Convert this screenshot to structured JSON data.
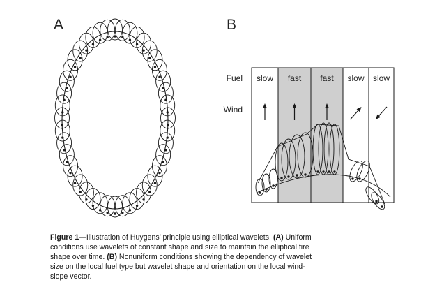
{
  "panels": {
    "a": {
      "letter": "A"
    },
    "b": {
      "letter": "B",
      "fuel_label": "Fuel",
      "wind_label": "Wind",
      "columns": [
        {
          "fuel": "slow",
          "wind": "north",
          "shaded": false
        },
        {
          "fuel": "fast",
          "wind": "north",
          "shaded": true
        },
        {
          "fuel": "fast",
          "wind": "north",
          "shaded": true
        },
        {
          "fuel": "slow",
          "wind": "north-east",
          "shaded": false
        },
        {
          "fuel": "slow",
          "wind": "south-west",
          "shaded": false
        }
      ]
    }
  },
  "caption": {
    "figure_label": "Figure 1—",
    "intro": "Illustration of Huygens’ principle using elliptical wavelets.",
    "part_a_label": "(A)",
    "part_a_text": " Uniform conditions use wavelets of constant shape and size to maintain the elliptical fire shape over time. ",
    "part_b_label": "(B)",
    "part_b_text": " Nonuniform conditions showing the dependency of wavelet size on the local fuel type but wavelet shape and orientation on the local wind-slope vector."
  },
  "colors": {
    "ink": "#1a1a1a",
    "fast_fuel_shading": "#cfcfcf"
  }
}
